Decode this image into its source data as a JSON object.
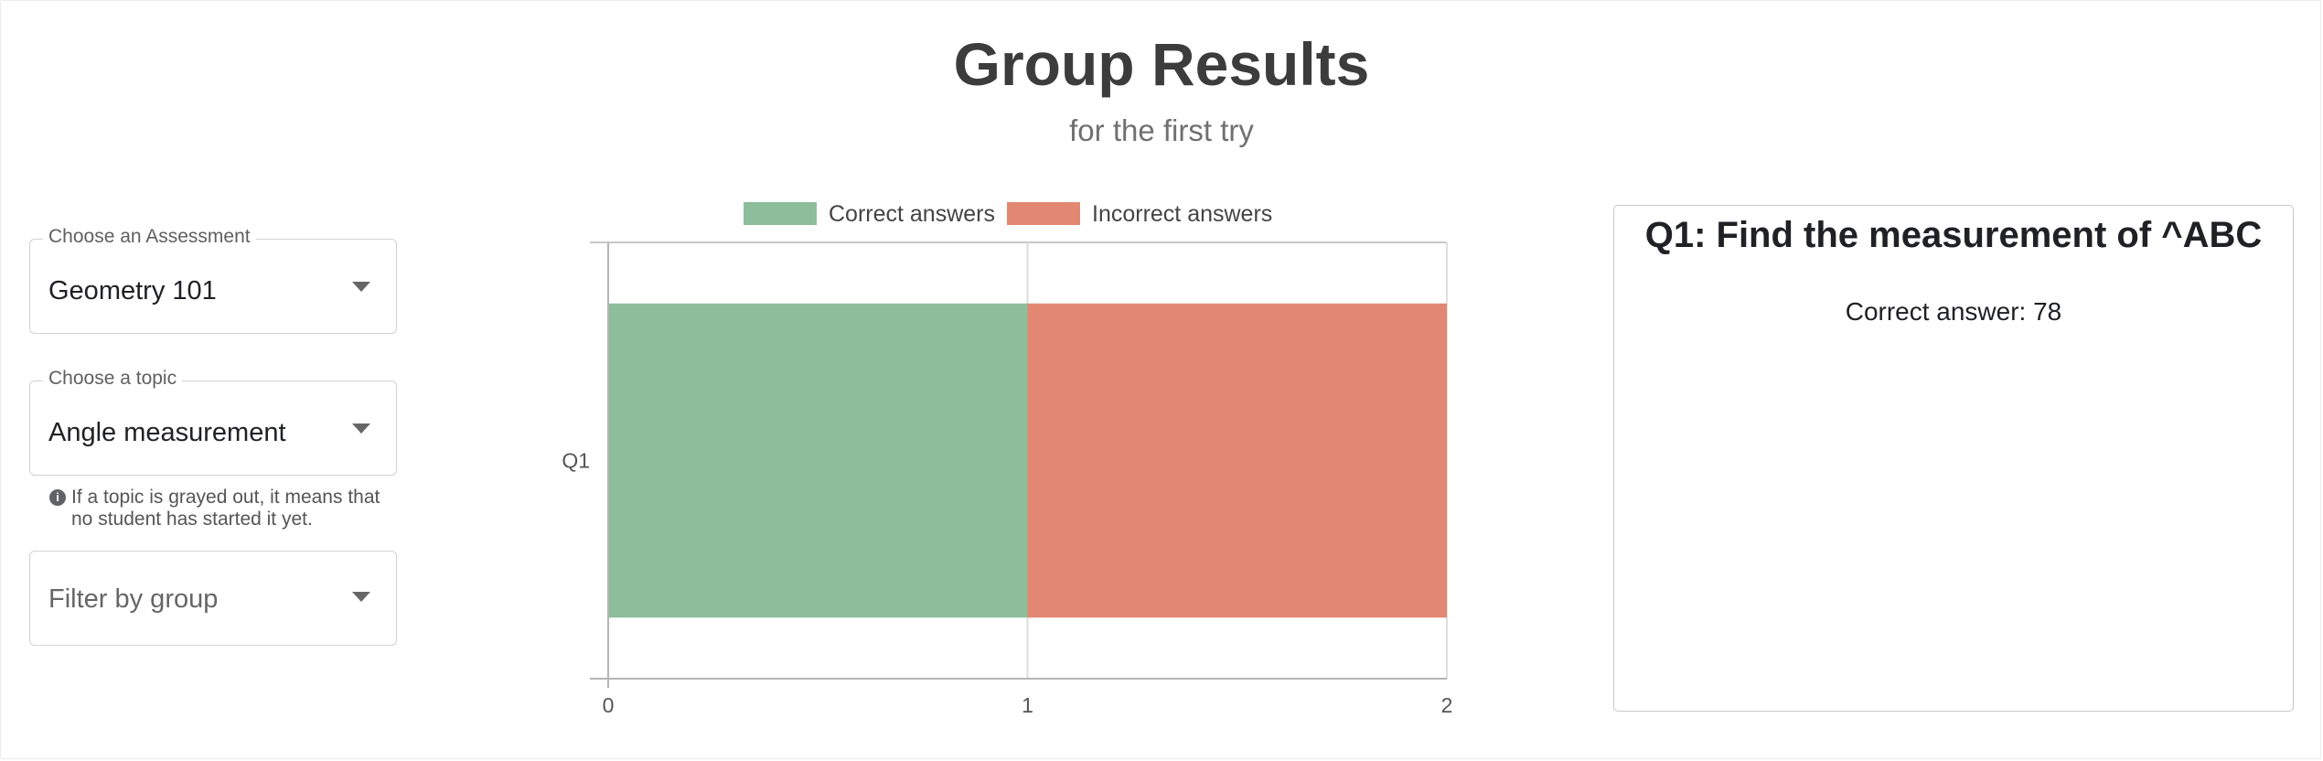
{
  "header": {
    "title": "Group Results",
    "subtitle": "for the first try"
  },
  "controls": {
    "assessment": {
      "label": "Choose an Assessment",
      "value": "Geometry 101"
    },
    "topic": {
      "label": "Choose a topic",
      "value": "Angle measurement"
    },
    "help_text": "If a topic is grayed out, it means that no student has started it yet.",
    "group": {
      "placeholder": "Filter by group"
    }
  },
  "chart_data": {
    "type": "bar",
    "orientation": "horizontal",
    "stacked": true,
    "categories": [
      "Q1"
    ],
    "series": [
      {
        "name": "Correct answers",
        "values": [
          1
        ],
        "color": "#8dbd9b"
      },
      {
        "name": "Incorrect answers",
        "values": [
          1
        ],
        "color": "#e28872"
      }
    ],
    "xlim": [
      0,
      2
    ],
    "x_ticks": [
      0,
      1,
      2
    ],
    "legend_position": "top",
    "grid": true
  },
  "question_panel": {
    "title": "Q1: Find the measurement of ^ABC",
    "answer": "Correct answer: 78"
  }
}
